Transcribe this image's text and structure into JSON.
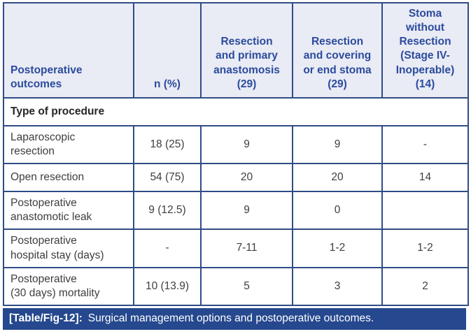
{
  "colors": {
    "border": "#2f4d86",
    "header_bg": "#e9ebf5",
    "header_text": "#2b4b9c",
    "body_text": "#3e3e3e",
    "section_text": "#262626",
    "caption_bg": "#25488e",
    "caption_text": "#ffffff"
  },
  "chart_data": {
    "type": "table",
    "title": "Surgical management options and postoperative outcomes",
    "columns": [
      "Postoperative outcomes",
      "n (%)",
      "Resection and primary anastomosis (29)",
      "Resection and covering or end stoma (29)",
      "Stoma without Resection (Stage IV-Inoperable) (14)"
    ],
    "section": "Type of procedure",
    "rows": [
      [
        "Laparoscopic resection",
        "18 (25)",
        "9",
        "9",
        "-"
      ],
      [
        "Open resection",
        "54 (75)",
        "20",
        "20",
        "14"
      ],
      [
        "Postoperative anastomotic leak",
        "9 (12.5)",
        "9",
        "0",
        ""
      ],
      [
        "Postoperative hospital stay (days)",
        "-",
        "7-11",
        "1-2",
        "1-2"
      ],
      [
        "Postoperative (30 days) mortality",
        "10 (13.9)",
        "5",
        "3",
        "2"
      ]
    ]
  },
  "table": {
    "headers": [
      "Postoperative\noutcomes",
      "n (%)",
      "Resection\nand primary\nanastomosis\n(29)",
      "Resection\nand covering\nor end stoma\n(29)",
      "Stoma\nwithout\nResection\n(Stage IV-\nInoperable)\n(14)"
    ],
    "section_header": "Type of procedure",
    "rows": [
      {
        "cells": [
          "Laparoscopic\nresection",
          "18 (25)",
          "9",
          "9",
          "-"
        ]
      },
      {
        "cells": [
          "Open resection",
          "54 (75)",
          "20",
          "20",
          "14"
        ]
      },
      {
        "cells": [
          "Postoperative\nanastomotic leak",
          "9 (12.5)",
          "9",
          "0",
          ""
        ]
      },
      {
        "cells": [
          "Postoperative\nhospital stay (days)",
          "-",
          "7-11",
          "1-2",
          "1-2"
        ]
      },
      {
        "cells": [
          "Postoperative\n(30 days) mortality",
          "10 (13.9)",
          "5",
          "3",
          "2"
        ]
      }
    ]
  },
  "caption": {
    "tag": "[Table/Fig-12]:",
    "text": "Surgical management options and postoperative outcomes."
  }
}
